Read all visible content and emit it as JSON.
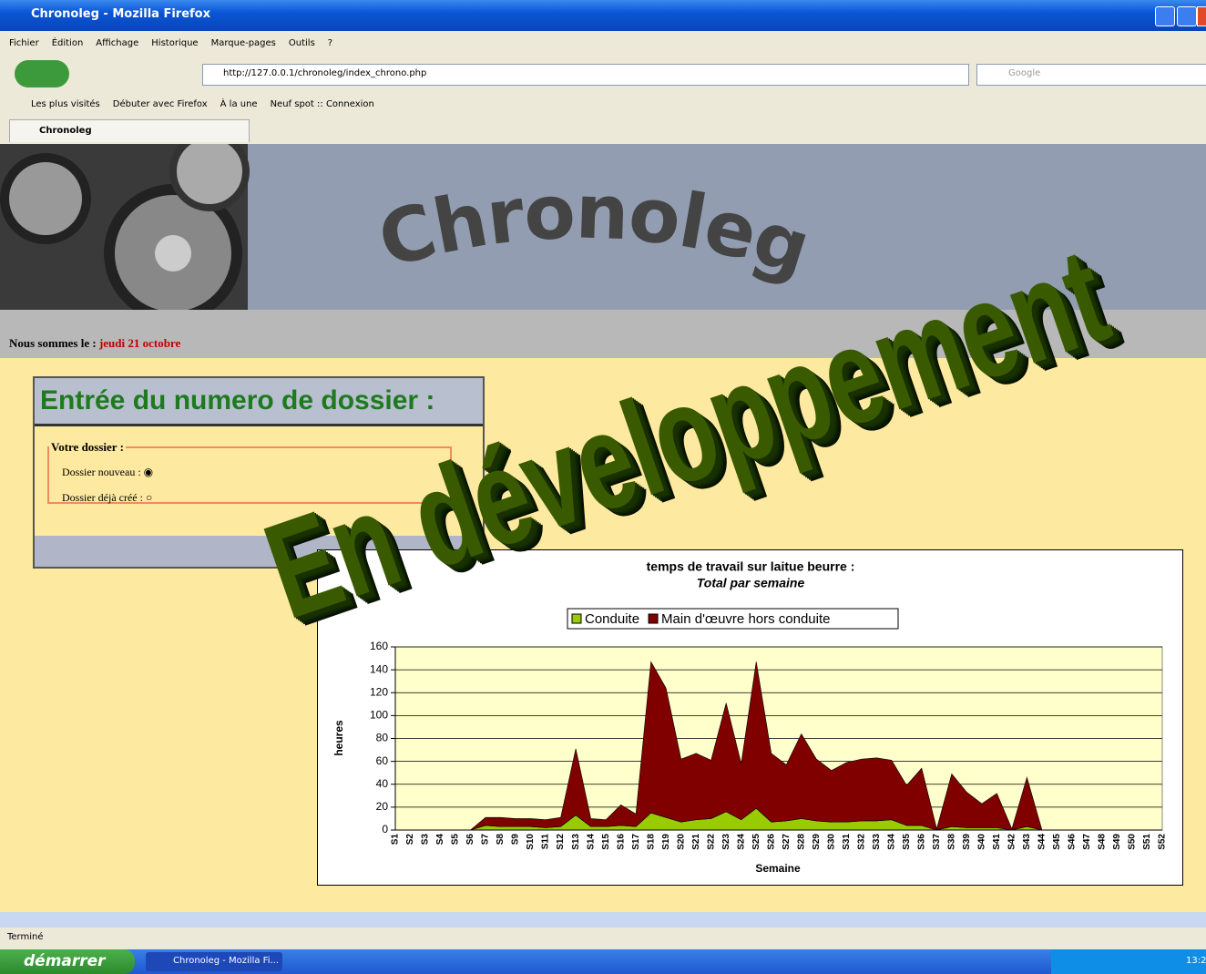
{
  "window": {
    "title": "Chronoleg - Mozilla Firefox",
    "menu": [
      "Fichier",
      "Édition",
      "Affichage",
      "Historique",
      "Marque-pages",
      "Outils",
      "?"
    ],
    "url": "http://127.0.0.1/chronoleg/index_chrono.php",
    "search": "Google",
    "bookmarks": [
      "Les plus visités",
      "Débuter avec Firefox",
      "À la une",
      "Neuf spot :: Connexion"
    ],
    "tab": "Chronoleg",
    "status": "Terminé"
  },
  "page": {
    "banner": "Chronoleg",
    "date_prefix": "Nous sommes le :",
    "date": "jeudi 21 octobre",
    "form_title": "Entrée du numero de dossier :",
    "legend": "Votre dossier :",
    "options": [
      "Dossier nouveau :",
      "Dossier déjà créé :"
    ],
    "watermark": "En développement"
  },
  "taskbar": {
    "start": "démarrer",
    "task": "Chronoleg - Mozilla Fi...",
    "clock": "13:2"
  },
  "chart_data": {
    "type": "area",
    "stacked": true,
    "title": "temps de travail sur laitue beurre :",
    "subtitle": "Total par semaine",
    "x_label": "Semaine",
    "y_label": "heures",
    "categories": [
      "S1",
      "S2",
      "S3",
      "S4",
      "S5",
      "S6",
      "S7",
      "S8",
      "S9",
      "S10",
      "S11",
      "S12",
      "S13",
      "S14",
      "S15",
      "S16",
      "S17",
      "S18",
      "S19",
      "S20",
      "S21",
      "S22",
      "S23",
      "S24",
      "S25",
      "S26",
      "S27",
      "S28",
      "S29",
      "S30",
      "S31",
      "S32",
      "S33",
      "S34",
      "S35",
      "S36",
      "S37",
      "S38",
      "S39",
      "S40",
      "S41",
      "S42",
      "S43",
      "S44",
      "S45",
      "S46",
      "S47",
      "S48",
      "S49",
      "S50",
      "S51",
      "S52"
    ],
    "series": [
      {
        "name": "Conduite",
        "color": "#99cc00",
        "values": [
          0,
          0,
          0,
          0,
          0,
          0,
          4,
          3,
          3,
          3,
          2,
          3,
          13,
          3,
          3,
          4,
          3,
          15,
          11,
          7,
          9,
          10,
          16,
          9,
          19,
          7,
          8,
          10,
          8,
          7,
          7,
          8,
          8,
          9,
          4,
          4,
          0,
          3,
          2,
          2,
          2,
          0,
          3,
          0,
          0,
          0,
          0,
          0,
          0,
          0,
          0,
          0
        ]
      },
      {
        "name": "Main d'œuvre hors conduite",
        "color": "#800000",
        "values": [
          0,
          0,
          0,
          0,
          0,
          0,
          7,
          8,
          7,
          7,
          7,
          8,
          58,
          7,
          6,
          18,
          11,
          132,
          113,
          55,
          58,
          51,
          95,
          49,
          128,
          60,
          49,
          74,
          54,
          45,
          52,
          54,
          55,
          52,
          35,
          50,
          1,
          46,
          31,
          21,
          30,
          1,
          43,
          0,
          0,
          0,
          0,
          0,
          0,
          0,
          0,
          0
        ]
      }
    ],
    "ylim": [
      0,
      160
    ],
    "yticks": [
      0,
      20,
      40,
      60,
      80,
      100,
      120,
      140,
      160
    ],
    "grid": true,
    "legend": "top",
    "plot_background": "#ffffcc"
  }
}
